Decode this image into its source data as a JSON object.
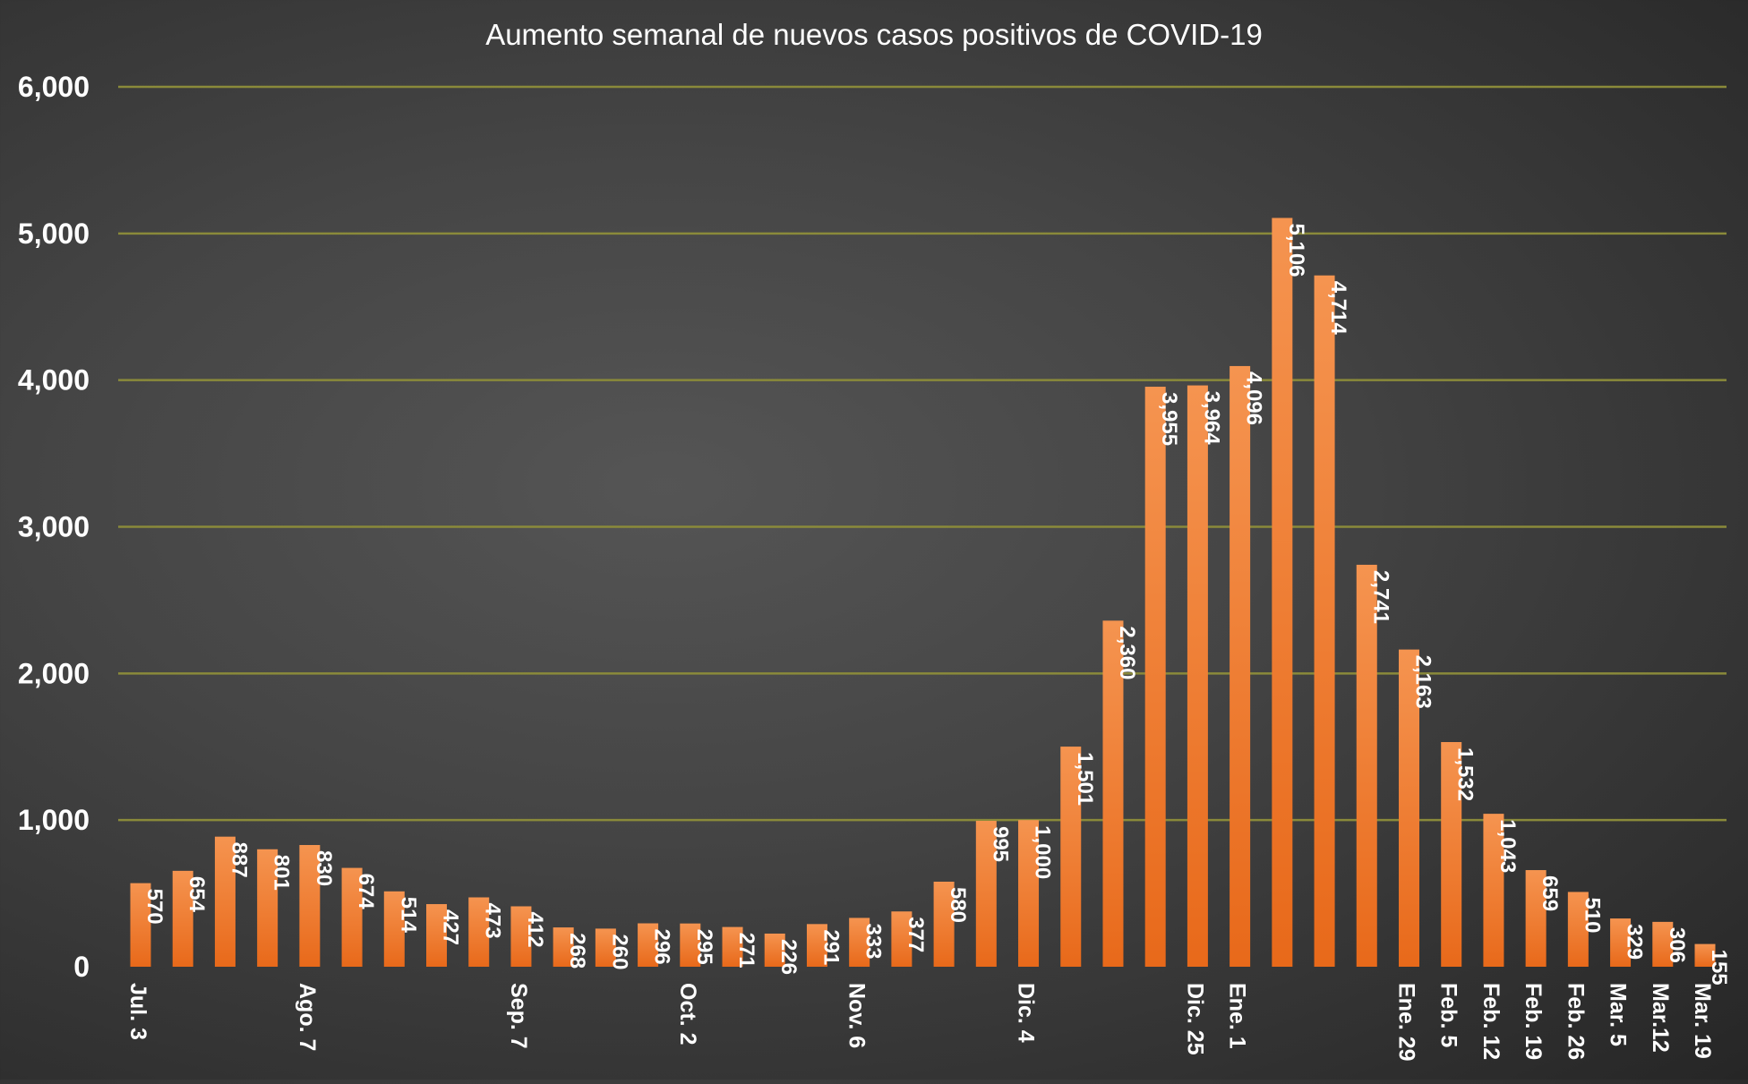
{
  "chart_data": {
    "type": "bar",
    "title": "Aumento semanal de nuevos casos positivos de COVID-19",
    "xlabel": "",
    "ylabel": "",
    "ylim": [
      0,
      6000
    ],
    "yticks": [
      0,
      1000,
      2000,
      3000,
      4000,
      5000,
      6000
    ],
    "ytick_labels": [
      "0",
      "1,000",
      "2,000",
      "3,000",
      "4,000",
      "5,000",
      "6,000"
    ],
    "grid": true,
    "legend": "none",
    "categories": [
      "Jul. 3",
      "",
      "",
      "",
      "Ago. 7",
      "",
      "",
      "",
      "",
      "Sep. 7",
      "",
      "",
      "",
      "Oct. 2",
      "",
      "",
      "",
      "Nov. 6",
      "",
      "",
      "",
      "Dic. 4",
      "",
      "",
      "",
      "Dic. 25",
      "Ene. 1",
      "",
      "",
      "",
      "Ene. 29",
      "Feb. 5",
      "Feb. 12",
      "Feb. 19",
      "Feb. 26",
      "Mar. 5",
      "Mar.12",
      "Mar. 19"
    ],
    "values": [
      570,
      654,
      887,
      801,
      830,
      674,
      514,
      427,
      473,
      412,
      268,
      260,
      296,
      295,
      271,
      226,
      291,
      333,
      377,
      580,
      995,
      1000,
      1501,
      2360,
      3955,
      3964,
      4096,
      5106,
      4714,
      2741,
      2163,
      1532,
      1043,
      659,
      510,
      329,
      306,
      155
    ],
    "value_labels": [
      "570",
      "654",
      "887",
      "801",
      "830",
      "674",
      "514",
      "427",
      "473",
      "412",
      "268",
      "260",
      "296",
      "295",
      "271",
      "226",
      "291",
      "333",
      "377",
      "580",
      "995",
      "1,000",
      "1,501",
      "2,360",
      "3,955",
      "3,964",
      "4,096",
      "5,106",
      "4,714",
      "2,741",
      "2,163",
      "1,532",
      "1,043",
      "659",
      "510",
      "329",
      "306",
      "155"
    ],
    "colors": {
      "bar_dark": "#e8691a",
      "bar_light": "#f59450",
      "gridline": "#8a8a3a",
      "axis_text": "#ffffff",
      "label_text": "#ffffff"
    }
  }
}
